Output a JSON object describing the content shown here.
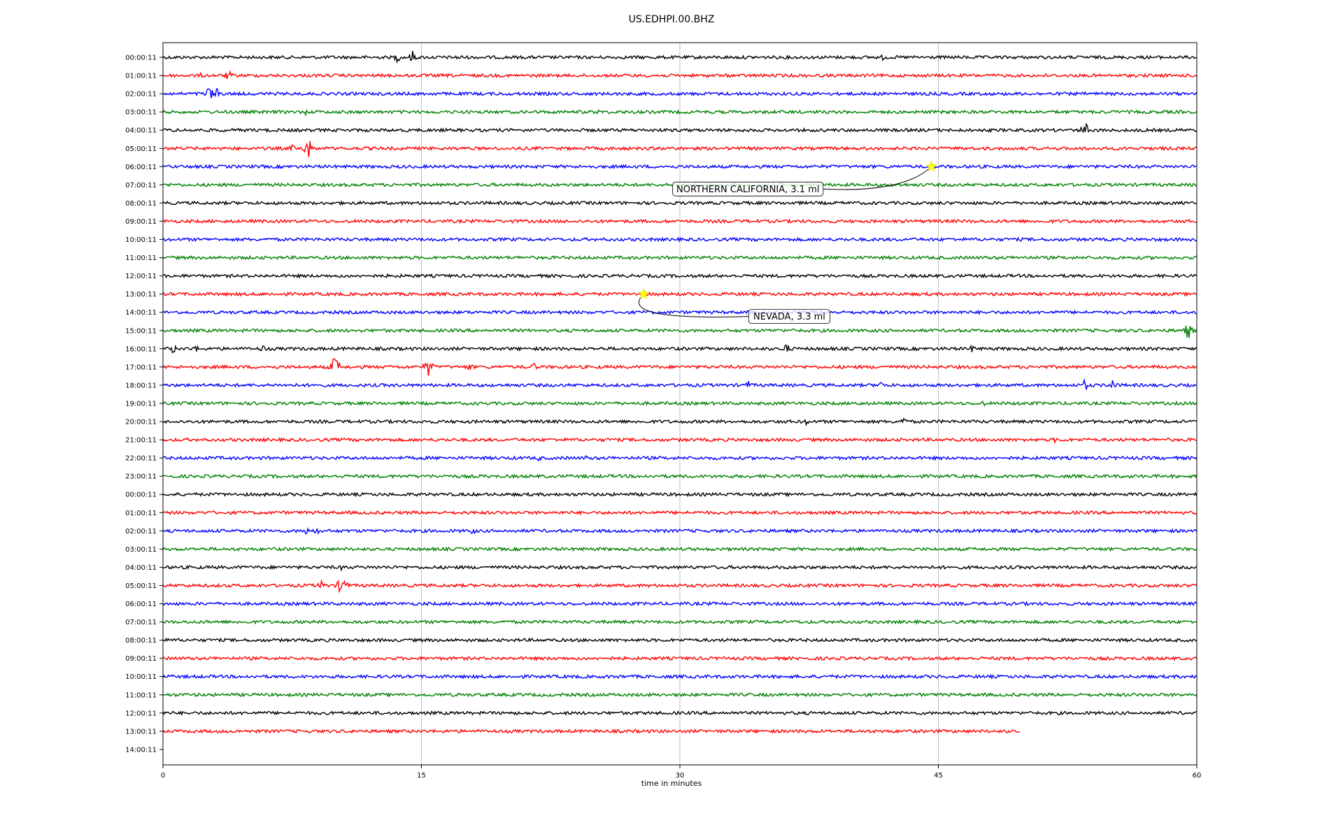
{
  "chart_data": {
    "type": "line",
    "title": "US.EDHPI.00.BHZ",
    "xlabel": "time in minutes",
    "ylabel": "",
    "xlim": [
      0,
      60
    ],
    "x_ticks": [
      "0",
      "15",
      "30",
      "45",
      "60"
    ],
    "x_tick_values": [
      0,
      15,
      30,
      45,
      60
    ],
    "grid": "vertical",
    "row_labels": [
      "00:00:11",
      "01:00:11",
      "02:00:11",
      "03:00:11",
      "04:00:11",
      "05:00:11",
      "06:00:11",
      "07:00:11",
      "08:00:11",
      "09:00:11",
      "10:00:11",
      "11:00:11",
      "12:00:11",
      "13:00:11",
      "14:00:11",
      "15:00:11",
      "16:00:11",
      "17:00:11",
      "18:00:11",
      "19:00:11",
      "20:00:11",
      "21:00:11",
      "22:00:11",
      "23:00:11",
      "00:00:11",
      "01:00:11",
      "02:00:11",
      "03:00:11",
      "04:00:11",
      "05:00:11",
      "06:00:11",
      "07:00:11",
      "08:00:11",
      "09:00:11",
      "10:00:11",
      "11:00:11",
      "12:00:11",
      "13:00:11",
      "14:00:11"
    ],
    "trace_colors": [
      "#000000",
      "#ff0000",
      "#0000ff",
      "#008000"
    ],
    "trace_end_minutes": [
      60,
      60,
      60,
      60,
      60,
      60,
      60,
      60,
      60,
      60,
      60,
      60,
      60,
      60,
      60,
      60,
      60,
      60,
      60,
      60,
      60,
      60,
      60,
      60,
      60,
      60,
      60,
      60,
      60,
      60,
      60,
      60,
      60,
      60,
      60,
      60,
      60,
      49.8,
      0
    ],
    "bursts": [
      {
        "row": 0,
        "minute": 13.6,
        "amp": 8
      },
      {
        "row": 0,
        "minute": 14.5,
        "amp": 10
      },
      {
        "row": 0,
        "minute": 17.2,
        "amp": 6
      },
      {
        "row": 0,
        "minute": 41.8,
        "amp": 5
      },
      {
        "row": 1,
        "minute": 3.8,
        "amp": 9
      },
      {
        "row": 1,
        "minute": 2.2,
        "amp": 4
      },
      {
        "row": 2,
        "minute": 2.7,
        "amp": 14
      },
      {
        "row": 2,
        "minute": 3.2,
        "amp": 12
      },
      {
        "row": 3,
        "minute": 8.3,
        "amp": 5
      },
      {
        "row": 3,
        "minute": 25.3,
        "amp": 4
      },
      {
        "row": 4,
        "minute": 53.5,
        "amp": 14
      },
      {
        "row": 4,
        "minute": 3.0,
        "amp": 4
      },
      {
        "row": 5,
        "minute": 8.4,
        "amp": 20
      },
      {
        "row": 5,
        "minute": 7.5,
        "amp": 6
      },
      {
        "row": 15,
        "minute": 59.5,
        "amp": 14
      },
      {
        "row": 16,
        "minute": 0.6,
        "amp": 8
      },
      {
        "row": 16,
        "minute": 1.9,
        "amp": 6
      },
      {
        "row": 16,
        "minute": 5.8,
        "amp": 7
      },
      {
        "row": 16,
        "minute": 36.2,
        "amp": 9
      },
      {
        "row": 16,
        "minute": 47.0,
        "amp": 7
      },
      {
        "row": 17,
        "minute": 10.0,
        "amp": 22
      },
      {
        "row": 17,
        "minute": 15.4,
        "amp": 15
      },
      {
        "row": 17,
        "minute": 17.8,
        "amp": 7
      },
      {
        "row": 17,
        "minute": 21.5,
        "amp": 7
      },
      {
        "row": 17,
        "minute": 23.2,
        "amp": 5
      },
      {
        "row": 18,
        "minute": 34.0,
        "amp": 7
      },
      {
        "row": 18,
        "minute": 41.6,
        "amp": 7
      },
      {
        "row": 18,
        "minute": 53.5,
        "amp": 10
      },
      {
        "row": 18,
        "minute": 55.1,
        "amp": 10
      },
      {
        "row": 19,
        "minute": 40.2,
        "amp": 6
      },
      {
        "row": 19,
        "minute": 47.6,
        "amp": 5
      },
      {
        "row": 19,
        "minute": 49.6,
        "amp": 5
      },
      {
        "row": 20,
        "minute": 37.4,
        "amp": 7
      },
      {
        "row": 20,
        "minute": 43.0,
        "amp": 7
      },
      {
        "row": 21,
        "minute": 51.8,
        "amp": 5
      },
      {
        "row": 22,
        "minute": 21.8,
        "amp": 5
      },
      {
        "row": 22,
        "minute": 24.5,
        "amp": 5
      },
      {
        "row": 26,
        "minute": 8.3,
        "amp": 8
      },
      {
        "row": 26,
        "minute": 9.0,
        "amp": 7
      },
      {
        "row": 26,
        "minute": 18.0,
        "amp": 6
      },
      {
        "row": 28,
        "minute": 10.4,
        "amp": 5
      },
      {
        "row": 29,
        "minute": 10.4,
        "amp": 20
      },
      {
        "row": 29,
        "minute": 9.2,
        "amp": 8
      }
    ],
    "events": [
      {
        "label": "NORTHERN CALIFORNIA, 3.1 ml",
        "row": 6,
        "minute": 44.6
      },
      {
        "label": "NEVADA, 3.3 ml",
        "row": 13,
        "minute": 27.9
      }
    ],
    "event_marker_color": "#ffff00"
  }
}
